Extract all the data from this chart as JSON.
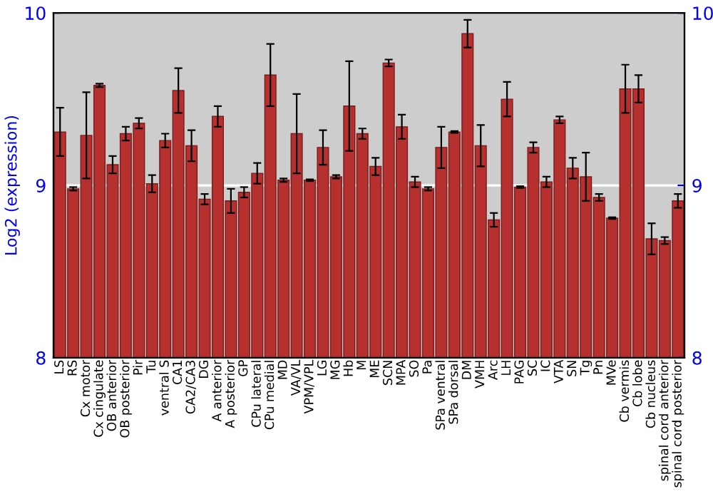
{
  "chart_data": {
    "type": "bar",
    "ylabel": "Log2 (expression)",
    "categories": [
      "LS",
      "RS",
      "Cx motor",
      "Cx cingulate",
      "OB anterior",
      "OB posterior",
      "Pir",
      "Tu",
      "ventral S",
      "CA1",
      "CA2/CA3",
      "DG",
      "A anterior",
      "A posterior",
      "GP",
      "CPu lateral",
      "CPu medial",
      "MD",
      "VA/VL",
      "VPM/VPL",
      "LG",
      "MG",
      "Hb",
      "M",
      "ME",
      "SCN",
      "MPA",
      "SO",
      "Pa",
      "SPa ventral",
      "SPa dorsal",
      "DM",
      "VMH",
      "Arc",
      "LH",
      "PAG",
      "SC",
      "IC",
      "VTA",
      "SN",
      "Tg",
      "Pn",
      "MVe",
      "Cb vermis",
      "Cb lobe",
      "Cb nucleus",
      "spinal cord anterior",
      "spinal cord posterior"
    ],
    "values": [
      9.31,
      8.98,
      9.29,
      9.58,
      9.12,
      9.3,
      9.36,
      9.01,
      9.26,
      9.55,
      9.23,
      8.92,
      9.4,
      8.91,
      8.96,
      9.07,
      9.64,
      9.03,
      9.3,
      9.03,
      9.22,
      9.05,
      9.46,
      9.3,
      9.11,
      9.71,
      9.34,
      9.02,
      8.98,
      9.22,
      9.31,
      9.88,
      9.23,
      8.8,
      9.5,
      8.99,
      9.22,
      9.02,
      9.38,
      9.1,
      9.05,
      8.93,
      8.81,
      9.56,
      9.56,
      8.69,
      8.68,
      8.91
    ],
    "errors": [
      0.14,
      0.01,
      0.25,
      0.01,
      0.05,
      0.04,
      0.03,
      0.05,
      0.04,
      0.13,
      0.09,
      0.03,
      0.06,
      0.07,
      0.03,
      0.06,
      0.18,
      0.01,
      0.23,
      0.005,
      0.1,
      0.01,
      0.26,
      0.03,
      0.05,
      0.02,
      0.07,
      0.03,
      0.01,
      0.12,
      0.005,
      0.08,
      0.12,
      0.04,
      0.1,
      0.005,
      0.03,
      0.03,
      0.02,
      0.06,
      0.14,
      0.02,
      0.005,
      0.14,
      0.08,
      0.09,
      0.02,
      0.04
    ],
    "color": "#b5302f",
    "ylim": [
      8,
      10
    ],
    "yticks": [
      8,
      9,
      10
    ],
    "y2lim": [
      8,
      10
    ],
    "y2ticks": [
      8,
      9,
      10
    ],
    "grid": "y"
  }
}
